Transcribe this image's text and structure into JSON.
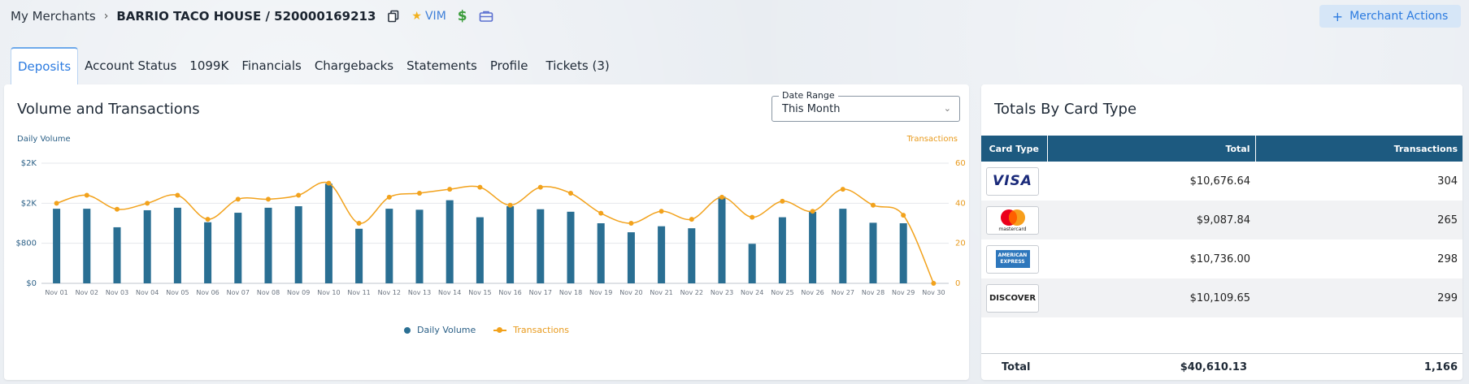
{
  "header": {
    "breadcrumb_root": "My Merchants",
    "merchant_title": "BARRIO TACO HOUSE / 520000169213",
    "vim_label": "VIM",
    "merchant_actions_label": "Merchant Actions"
  },
  "tabs": [
    {
      "label": "Deposits",
      "active": true
    },
    {
      "label": "Account Status"
    },
    {
      "label": "1099K"
    },
    {
      "label": "Financials"
    },
    {
      "label": "Chargebacks"
    },
    {
      "label": "Statements"
    },
    {
      "label": "Profile"
    },
    {
      "label": "Tickets (3)"
    }
  ],
  "volume_card": {
    "title": "Volume and Transactions",
    "date_range_label": "Date Range",
    "date_range_value": "This Month"
  },
  "chart_data": {
    "type": "bar",
    "xlabel": "",
    "ylabel": "Daily Volume",
    "y2label": "Transactions",
    "left_ticks": [
      "$0",
      "$800",
      "$2K",
      "$2K"
    ],
    "right_ticks": [
      "0",
      "20",
      "40",
      "60"
    ],
    "categories": [
      "Nov 01",
      "Nov 02",
      "Nov 03",
      "Nov 04",
      "Nov 05",
      "Nov 06",
      "Nov 07",
      "Nov 08",
      "Nov 09",
      "Nov 10",
      "Nov 11",
      "Nov 12",
      "Nov 13",
      "Nov 14",
      "Nov 15",
      "Nov 16",
      "Nov 17",
      "Nov 18",
      "Nov 19",
      "Nov 20",
      "Nov 21",
      "Nov 22",
      "Nov 23",
      "Nov 24",
      "Nov 25",
      "Nov 26",
      "Nov 27",
      "Nov 28",
      "Nov 29",
      "Nov 30"
    ],
    "series": [
      {
        "name": "Daily Volume",
        "type": "bar",
        "axis": "left",
        "color": "#2a6f93",
        "values": [
          1490,
          1490,
          1120,
          1460,
          1510,
          1220,
          1410,
          1510,
          1540,
          1990,
          1090,
          1490,
          1470,
          1660,
          1320,
          1540,
          1480,
          1430,
          1200,
          1020,
          1140,
          1100,
          1730,
          790,
          1320,
          1430,
          1490,
          1210,
          1200,
          0
        ]
      },
      {
        "name": "Transactions",
        "type": "line",
        "axis": "right",
        "color": "#f2a21c",
        "values": [
          40,
          44,
          37,
          40,
          44,
          32,
          42,
          42,
          44,
          50,
          30,
          43,
          45,
          47,
          48,
          39,
          48,
          45,
          35,
          30,
          36,
          32,
          43,
          33,
          41,
          36,
          47,
          39,
          34,
          0
        ]
      }
    ],
    "ylim": [
      0,
      2400
    ],
    "y2lim": [
      0,
      60
    ],
    "legend": "bottom",
    "grid": true
  },
  "totals_card": {
    "title": "Totals By Card Type",
    "columns": [
      "Card Type",
      "Total",
      "Transactions"
    ],
    "rows": [
      {
        "card": "visa",
        "logo_text": "VISA",
        "total": "$10,676.64",
        "transactions": "304"
      },
      {
        "card": "mastercard",
        "logo_text": "mastercard",
        "total": "$9,087.84",
        "transactions": "265"
      },
      {
        "card": "amex",
        "logo_text": "AMERICAN EXPRESS",
        "total": "$10,736.00",
        "transactions": "298"
      },
      {
        "card": "discover",
        "logo_text": "DISCOVER",
        "total": "$10,109.65",
        "transactions": "299"
      }
    ],
    "footer": {
      "label": "Total",
      "total": "$40,610.13",
      "transactions": "1,166"
    }
  },
  "icons": {
    "copy": "copy-icon",
    "star": "star-icon",
    "dollar": "dollar-icon",
    "briefcase": "briefcase-icon",
    "plus": "plus-icon",
    "chevron": "chevron-down-icon"
  }
}
